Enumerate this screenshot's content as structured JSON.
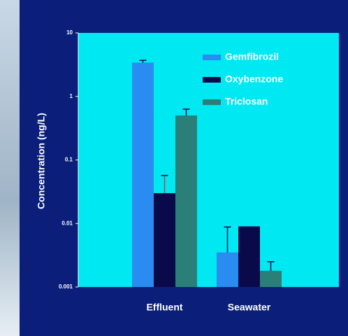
{
  "chart_data": {
    "type": "bar",
    "y_label": "Concentration (ng/L)",
    "categories": [
      "Effluent",
      "Seawater"
    ],
    "series": [
      {
        "name": "Gemfibrozil",
        "color": "#2a8cf0",
        "values": [
          3.4,
          0.0035
        ],
        "errors": [
          0.3,
          0.0053
        ]
      },
      {
        "name": "Oxybenzone",
        "color": "#0a0a4a",
        "values": [
          0.03,
          0.009
        ],
        "errors": [
          0.027,
          null
        ]
      },
      {
        "name": "Triclosan",
        "color": "#2a7f78",
        "values": [
          0.5,
          0.0018
        ],
        "errors": [
          0.13,
          0.0007
        ]
      }
    ],
    "ylim": [
      0.001,
      10
    ],
    "yticks": [
      10,
      1,
      0.1,
      0.01,
      0.001
    ],
    "log_y": true,
    "legend": "upper right",
    "background": "#0b1f7a",
    "plot_color": "#00e8f2"
  }
}
